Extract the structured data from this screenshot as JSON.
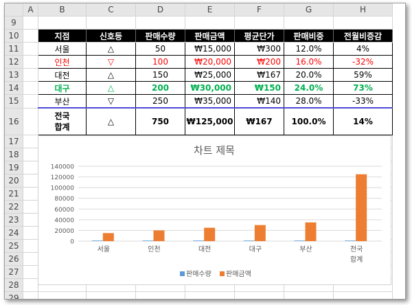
{
  "columns": [
    "A",
    "B",
    "C",
    "D",
    "E",
    "F",
    "G",
    "H"
  ],
  "row_numbers": [
    "9",
    "10",
    "11",
    "12",
    "13",
    "14",
    "15",
    "16",
    "17",
    "18",
    "19",
    "20",
    "21",
    "22",
    "23",
    "24",
    "25",
    "26",
    "27",
    "28",
    "29",
    "30"
  ],
  "table": {
    "headers": [
      "지점",
      "신호등",
      "판매수량",
      "판매금액",
      "평균단가",
      "판매비중",
      "전월비증감"
    ],
    "rows": [
      {
        "branch": "서울",
        "signal": "△",
        "qty": "50",
        "amount": "₩15,000",
        "avg": "₩300",
        "share": "12.0%",
        "change": "4%",
        "style": ""
      },
      {
        "branch": "인천",
        "signal": "▽",
        "qty": "100",
        "amount": "₩20,000",
        "avg": "₩200",
        "share": "16.0%",
        "change": "-32%",
        "style": "red"
      },
      {
        "branch": "대전",
        "signal": "△",
        "qty": "150",
        "amount": "₩25,000",
        "avg": "₩167",
        "share": "20.0%",
        "change": "59%",
        "style": ""
      },
      {
        "branch": "대구",
        "signal": "△",
        "qty": "200",
        "amount": "₩30,000",
        "avg": "₩150",
        "share": "24.0%",
        "change": "73%",
        "style": "green"
      },
      {
        "branch": "부산",
        "signal": "▽",
        "qty": "250",
        "amount": "₩35,000",
        "avg": "₩140",
        "share": "28.0%",
        "change": "-33%",
        "style": ""
      }
    ],
    "total": {
      "branch_line1": "전국",
      "branch_line2": "합계",
      "signal": "△",
      "qty": "750",
      "amount": "₩125,000",
      "avg": "₩167",
      "share": "100.0%",
      "change": "14%"
    }
  },
  "chart_data": {
    "type": "bar",
    "title": "차트 제목",
    "categories": [
      "서울",
      "인천",
      "대전",
      "대구",
      "부산",
      "전국\n합계"
    ],
    "series": [
      {
        "name": "판매수량",
        "values": [
          50,
          100,
          150,
          200,
          250,
          750
        ],
        "color": "#5b9bd5"
      },
      {
        "name": "판매금액",
        "values": [
          15000,
          20000,
          25000,
          30000,
          35000,
          125000
        ],
        "color": "#ed7d31"
      }
    ],
    "ylim": [
      0,
      140000
    ],
    "yticks": [
      "0",
      "20000",
      "40000",
      "60000",
      "80000",
      "100000",
      "120000",
      "140000"
    ],
    "grid": true,
    "legend": "bottom"
  }
}
